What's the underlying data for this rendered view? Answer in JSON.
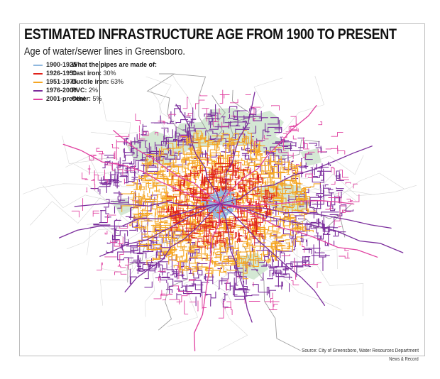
{
  "title": "ESTIMATED INFRASTRUCTURE AGE FROM 1900 TO PRESENT",
  "subtitle": "Age of water/sewer lines in Greensboro.",
  "legend": [
    {
      "label": "1900-1925",
      "color": "#8fb8de"
    },
    {
      "label": "1926-1950",
      "color": "#e0231b"
    },
    {
      "label": "1951-1975",
      "color": "#f5a623"
    },
    {
      "label": "1976-2000",
      "color": "#7b2d9c"
    },
    {
      "label": "2001-present",
      "color": "#e040a0"
    }
  ],
  "pipes": {
    "title": "What the pipes are made of:",
    "rows": [
      {
        "material": "Cast iron:",
        "share": "30%"
      },
      {
        "material": "Ductile iron:",
        "share": "63%"
      },
      {
        "material": "PVC:",
        "share": "2%"
      },
      {
        "material": "Other:",
        "share": "5%"
      }
    ]
  },
  "colors": {
    "park_green": "#cfe6cf",
    "road_gray": "#d6d6d6",
    "road_dark": "#9e9e9e",
    "frame_border": "#bdbdbd"
  },
  "source": "Source: City of Greensboro, Water Resources Department",
  "credit": "News & Record"
}
